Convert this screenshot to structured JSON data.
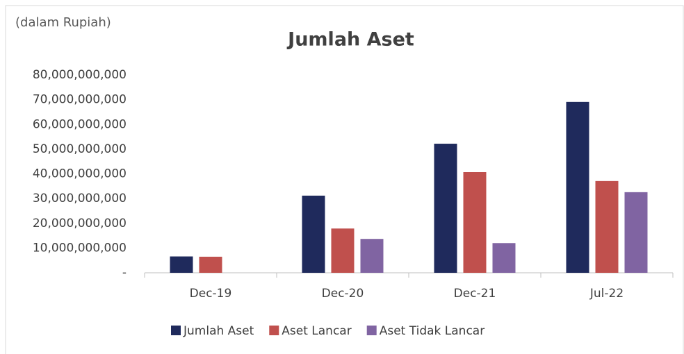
{
  "chart_data": {
    "type": "bar",
    "title": "Jumlah Aset",
    "subtitle": "(dalam Rupiah)",
    "categories": [
      "Dec-19",
      "Dec-20",
      "Dec-21",
      "Jul-22"
    ],
    "series": [
      {
        "name": "Jumlah Aset",
        "color": "#1f2a5c",
        "values": [
          6600000000,
          31200000000,
          52200000000,
          69100000000
        ]
      },
      {
        "name": "Aset Lancar",
        "color": "#c0504d",
        "values": [
          6500000000,
          17900000000,
          40700000000,
          37100000000
        ]
      },
      {
        "name": "Aset Tidak Lancar",
        "color": "#8064a2",
        "values": [
          0,
          13700000000,
          12000000000,
          32600000000
        ]
      }
    ],
    "ylim": [
      0,
      80000000000
    ],
    "yticks": [
      {
        "value": 0,
        "label": "-"
      },
      {
        "value": 10000000000,
        "label": "10,000,000,000"
      },
      {
        "value": 20000000000,
        "label": "20,000,000,000"
      },
      {
        "value": 30000000000,
        "label": "30,000,000,000"
      },
      {
        "value": 40000000000,
        "label": "40,000,000,000"
      },
      {
        "value": 50000000000,
        "label": "50,000,000,000"
      },
      {
        "value": 60000000000,
        "label": "60,000,000,000"
      },
      {
        "value": 70000000000,
        "label": "70,000,000,000"
      },
      {
        "value": 80000000000,
        "label": "80,000,000,000"
      }
    ],
    "grid": false,
    "legend": "bottom"
  }
}
